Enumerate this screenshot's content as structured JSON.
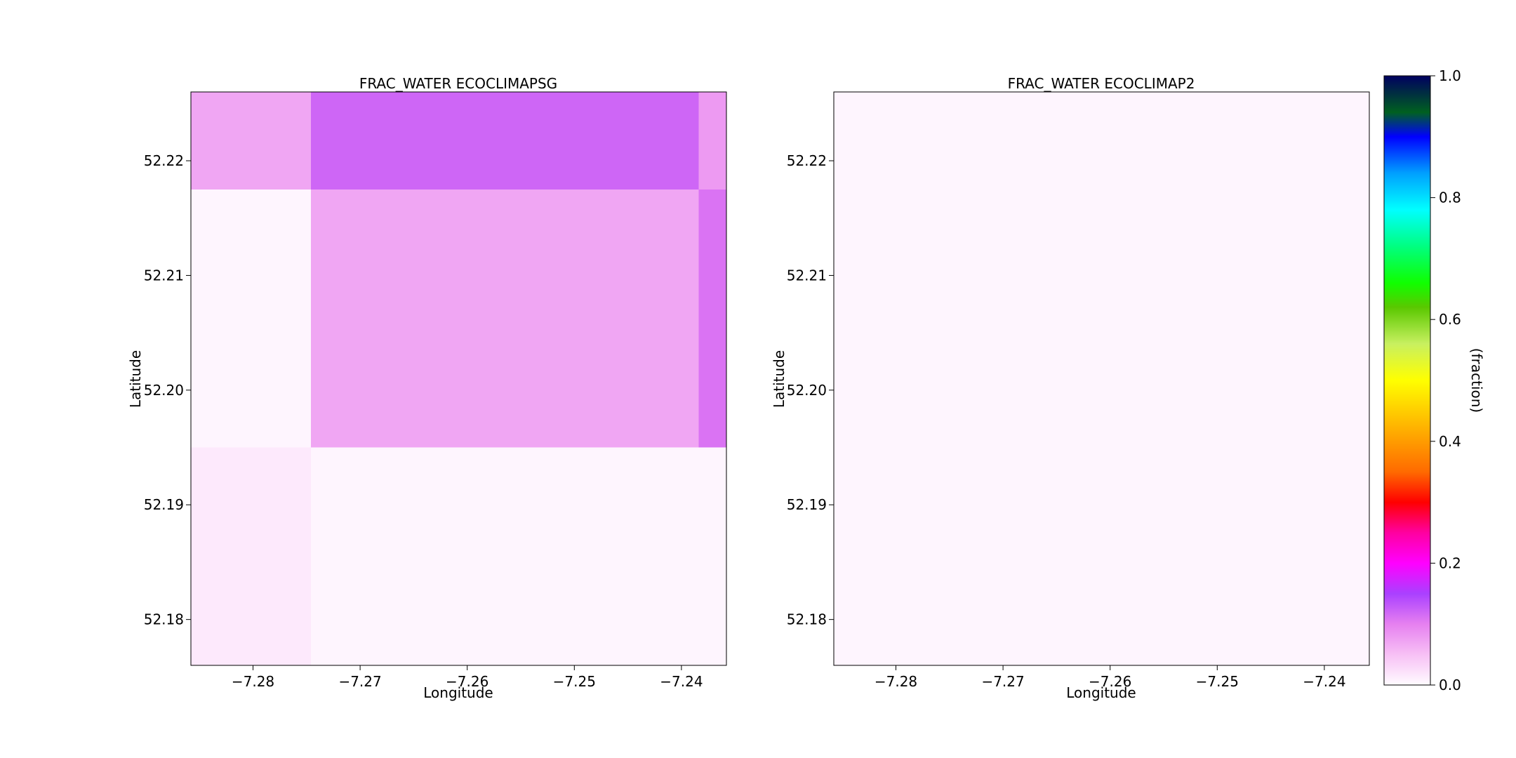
{
  "chart_data": [
    {
      "type": "heatmap",
      "title": "FRAC_WATER ECOCLIMAPSG",
      "xlabel": "Longitude",
      "ylabel": "Latitude",
      "xlim": [
        -7.2858,
        -7.2358
      ],
      "ylim": [
        52.176,
        52.226
      ],
      "xticks": [
        -7.28,
        -7.27,
        -7.26,
        -7.25,
        -7.24
      ],
      "xtick_labels": [
        "−7.28",
        "−7.27",
        "−7.26",
        "−7.25",
        "−7.24"
      ],
      "yticks": [
        52.18,
        52.19,
        52.2,
        52.21,
        52.22
      ],
      "ytick_labels": [
        "52.18",
        "52.19",
        "52.20",
        "52.21",
        "52.22"
      ],
      "grid": false,
      "cells": [
        {
          "lon0": -7.2858,
          "lon1": -7.2746,
          "lat0": 52.2175,
          "lat1": 52.226,
          "value": 0.07
        },
        {
          "lon0": -7.2746,
          "lon1": -7.2384,
          "lat0": 52.2175,
          "lat1": 52.226,
          "value": 0.12
        },
        {
          "lon0": -7.2384,
          "lon1": -7.2358,
          "lat0": 52.2175,
          "lat1": 52.226,
          "value": 0.08
        },
        {
          "lon0": -7.2858,
          "lon1": -7.2746,
          "lat0": 52.195,
          "lat1": 52.2175,
          "value": 0.005
        },
        {
          "lon0": -7.2746,
          "lon1": -7.2384,
          "lat0": 52.195,
          "lat1": 52.2175,
          "value": 0.07
        },
        {
          "lon0": -7.2384,
          "lon1": -7.2358,
          "lat0": 52.195,
          "lat1": 52.2175,
          "value": 0.11
        },
        {
          "lon0": -7.2858,
          "lon1": -7.2746,
          "lat0": 52.176,
          "lat1": 52.195,
          "value": 0.015
        },
        {
          "lon0": -7.2746,
          "lon1": -7.2358,
          "lat0": 52.176,
          "lat1": 52.195,
          "value": 0.005
        }
      ]
    },
    {
      "type": "heatmap",
      "title": "FRAC_WATER ECOCLIMAP2",
      "xlabel": "Longitude",
      "ylabel": "Latitude",
      "xlim": [
        -7.2858,
        -7.2358
      ],
      "ylim": [
        52.176,
        52.226
      ],
      "xticks": [
        -7.28,
        -7.27,
        -7.26,
        -7.25,
        -7.24
      ],
      "xtick_labels": [
        "−7.28",
        "−7.27",
        "−7.26",
        "−7.25",
        "−7.24"
      ],
      "yticks": [
        52.18,
        52.19,
        52.2,
        52.21,
        52.22
      ],
      "ytick_labels": [
        "52.18",
        "52.19",
        "52.20",
        "52.21",
        "52.22"
      ],
      "grid": false,
      "cells": [
        {
          "lon0": -7.2858,
          "lon1": -7.2358,
          "lat0": 52.176,
          "lat1": 52.226,
          "value": 0.005
        }
      ]
    }
  ],
  "colorbar": {
    "label": "(fraction)",
    "range": [
      0.0,
      1.0
    ],
    "ticks": [
      0.0,
      0.2,
      0.4,
      0.6,
      0.8,
      1.0
    ],
    "tick_labels": [
      "0.0",
      "0.2",
      "0.4",
      "0.6",
      "0.8",
      "1.0"
    ],
    "colormap": [
      {
        "v": 0.0,
        "c": "#fffbff"
      },
      {
        "v": 0.05,
        "c": "#f7c0f5"
      },
      {
        "v": 0.1,
        "c": "#e680f0"
      },
      {
        "v": 0.15,
        "c": "#aa40ff"
      },
      {
        "v": 0.2,
        "c": "#ff00ff"
      },
      {
        "v": 0.25,
        "c": "#ff00a0"
      },
      {
        "v": 0.3,
        "c": "#ff0000"
      },
      {
        "v": 0.35,
        "c": "#ff6a00"
      },
      {
        "v": 0.42,
        "c": "#ffb000"
      },
      {
        "v": 0.5,
        "c": "#ffff00"
      },
      {
        "v": 0.56,
        "c": "#c8f060"
      },
      {
        "v": 0.62,
        "c": "#5ac800"
      },
      {
        "v": 0.66,
        "c": "#10ff00"
      },
      {
        "v": 0.72,
        "c": "#00ff80"
      },
      {
        "v": 0.78,
        "c": "#00ffff"
      },
      {
        "v": 0.84,
        "c": "#00a0ff"
      },
      {
        "v": 0.9,
        "c": "#0000ff"
      },
      {
        "v": 0.94,
        "c": "#006020"
      },
      {
        "v": 1.0,
        "c": "#000060"
      }
    ]
  }
}
